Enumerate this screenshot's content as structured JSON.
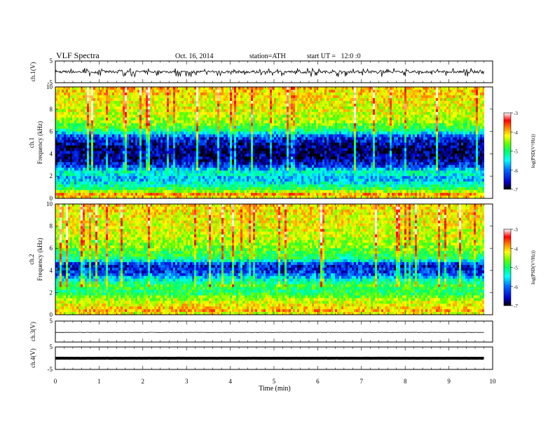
{
  "header": {
    "title": "VLF Spectra",
    "date": "Oct. 16, 2014",
    "station": "station=ATH",
    "start": "start UT =   12:0 :0"
  },
  "chart_data": [
    {
      "id": "ch1_voltage",
      "type": "line",
      "ylabel": "ch.1(V)",
      "ylim": [
        -5,
        5
      ],
      "yticks": [
        "5",
        "-5"
      ],
      "xlim": [
        0,
        10
      ],
      "trace_mean": 0,
      "trace_range": [
        -2.3,
        1.8
      ],
      "trace_end_min": 9.8,
      "grid": false
    },
    {
      "id": "ch1_spectrogram",
      "type": "heatmap",
      "ylabel_channel": "ch.1",
      "ylabel": "Frequency  (kHz)",
      "ylim": [
        0,
        10
      ],
      "yticks": [
        "10",
        "8",
        "6",
        "4",
        "2",
        "0"
      ],
      "xlim": [
        0,
        10
      ],
      "data_end_min": 9.8,
      "colorbar": {
        "label": "log(PSD(V²/Hz))",
        "range": [
          -7,
          -3
        ],
        "ticks": [
          "-3",
          "-4",
          "-5",
          "-6",
          "-7"
        ]
      },
      "logpsd_profile": [
        {
          "f": 10.0,
          "v": -4.1
        },
        {
          "f": 9.0,
          "v": -4.3
        },
        {
          "f": 8.0,
          "v": -4.4
        },
        {
          "f": 7.0,
          "v": -4.6
        },
        {
          "f": 6.2,
          "v": -5.1
        },
        {
          "f": 5.5,
          "v": -6.3
        },
        {
          "f": 4.5,
          "v": -6.8
        },
        {
          "f": 3.5,
          "v": -6.7
        },
        {
          "f": 2.8,
          "v": -6.2
        },
        {
          "f": 2.3,
          "v": -5.4
        },
        {
          "f": 1.8,
          "v": -5.9
        },
        {
          "f": 1.2,
          "v": -5.5
        },
        {
          "f": 0.7,
          "v": -4.8
        },
        {
          "f": 0.3,
          "v": -3.8
        },
        {
          "f": 0.0,
          "v": -4.5
        }
      ]
    },
    {
      "id": "ch2_spectrogram",
      "type": "heatmap",
      "ylabel_channel": "ch.2",
      "ylabel": "Frequency  (kHz)",
      "ylim": [
        0,
        10
      ],
      "yticks": [
        "10",
        "8",
        "6",
        "4",
        "2",
        "0"
      ],
      "xlim": [
        0,
        10
      ],
      "data_end_min": 9.8,
      "colorbar": {
        "label": "log(PSD(V²/Hz))",
        "range": [
          -7,
          -3
        ],
        "ticks": [
          "-3",
          "-4",
          "-5",
          "-6",
          "-7"
        ]
      },
      "logpsd_profile": [
        {
          "f": 10.0,
          "v": -4.2
        },
        {
          "f": 9.0,
          "v": -4.3
        },
        {
          "f": 8.0,
          "v": -4.4
        },
        {
          "f": 7.0,
          "v": -4.5
        },
        {
          "f": 6.0,
          "v": -4.8
        },
        {
          "f": 5.0,
          "v": -5.3
        },
        {
          "f": 4.5,
          "v": -6.5
        },
        {
          "f": 3.8,
          "v": -6.3
        },
        {
          "f": 3.2,
          "v": -5.6
        },
        {
          "f": 2.6,
          "v": -5.0
        },
        {
          "f": 2.0,
          "v": -5.2
        },
        {
          "f": 1.4,
          "v": -4.6
        },
        {
          "f": 0.8,
          "v": -4.3
        },
        {
          "f": 0.3,
          "v": -4.0
        },
        {
          "f": 0.0,
          "v": -4.6
        }
      ]
    },
    {
      "id": "ch3_voltage",
      "type": "line",
      "ylabel": "ch.3(V)",
      "ylim": [
        -5,
        5
      ],
      "yticks": [
        "5"
      ],
      "xlim": [
        0,
        10
      ],
      "trace_mean": -0.4,
      "trace_range": [
        -0.6,
        -0.2
      ],
      "trace_end_min": 9.8,
      "grid": false
    },
    {
      "id": "ch4_voltage",
      "type": "line",
      "ylabel": "ch.4(V)",
      "ylim": [
        -5,
        5
      ],
      "yticks": [
        "5",
        "-5"
      ],
      "xlim": [
        0,
        10
      ],
      "xlabel": "Time  (min)",
      "xticks": [
        "0",
        "1",
        "2",
        "3",
        "4",
        "5",
        "6",
        "7",
        "8",
        "9",
        "10"
      ],
      "trace_mean": 0,
      "trace_range": [
        -0.2,
        0.2
      ],
      "trace_end_min": 9.8,
      "grid": false
    }
  ],
  "colors": {
    "colormap": [
      "#000000",
      "#0000cc",
      "#0066ff",
      "#00ffff",
      "#00ff66",
      "#66ff00",
      "#ffff00",
      "#ff8800",
      "#ff0000",
      "#ffffff"
    ],
    "trace": "#000000",
    "axis": "#000000"
  }
}
